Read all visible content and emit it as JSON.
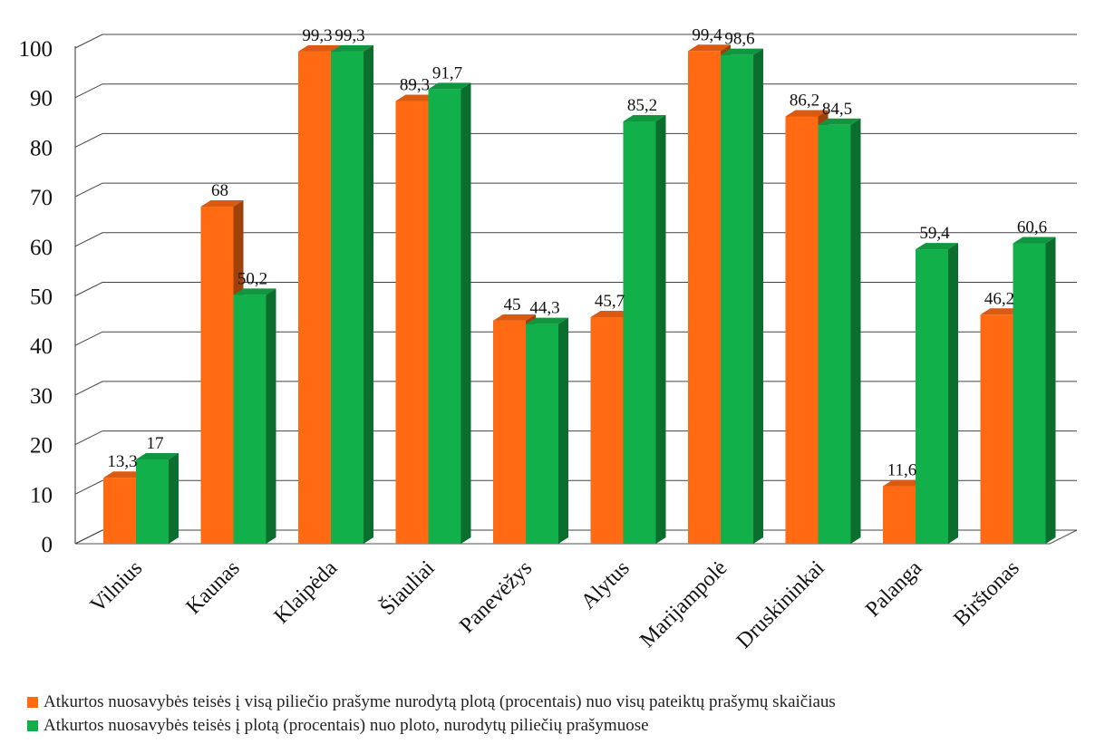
{
  "chart_data": {
    "type": "bar",
    "title": "",
    "xlabel": "",
    "ylabel": "",
    "ylim": [
      0,
      100
    ],
    "yticks": [
      0,
      10,
      20,
      30,
      40,
      50,
      60,
      70,
      80,
      90,
      100
    ],
    "grid": true,
    "legend_position": "bottom",
    "categories": [
      "Vilnius",
      "Kaunas",
      "Klaipėda",
      "Šiauliai",
      "Panevėžys",
      "Alytus",
      "Marijampolė",
      "Druskininkai",
      "Palanga",
      "Birštonas"
    ],
    "series": [
      {
        "name": "Atkurtos nuosavybės teisės į visą piliečio prašyme nurodytą plotą (procentais) nuo visų pateiktų prašymų skaičiaus",
        "color": "#ff6a13",
        "values": [
          13.3,
          68,
          99.3,
          89.3,
          45,
          45.7,
          99.4,
          86.2,
          11.6,
          46.2
        ],
        "labels": [
          "13,3",
          "68",
          "99,3",
          "89,3",
          "45",
          "45,7",
          "99,4",
          "86,2",
          "11,6",
          "46,2"
        ]
      },
      {
        "name": "Atkurtos nuosavybės teisės į plotą (procentais) nuo ploto, nurodytų piliečių prašymuose",
        "color": "#12b04a",
        "values": [
          17,
          50.2,
          99.3,
          91.7,
          44.3,
          85.2,
          98.6,
          84.5,
          59.4,
          60.6
        ],
        "labels": [
          "17",
          "50,2",
          "99,3",
          "91,7",
          "44,3",
          "85,2",
          "98,6",
          "84,5",
          "59,4",
          "60,6"
        ]
      }
    ]
  }
}
